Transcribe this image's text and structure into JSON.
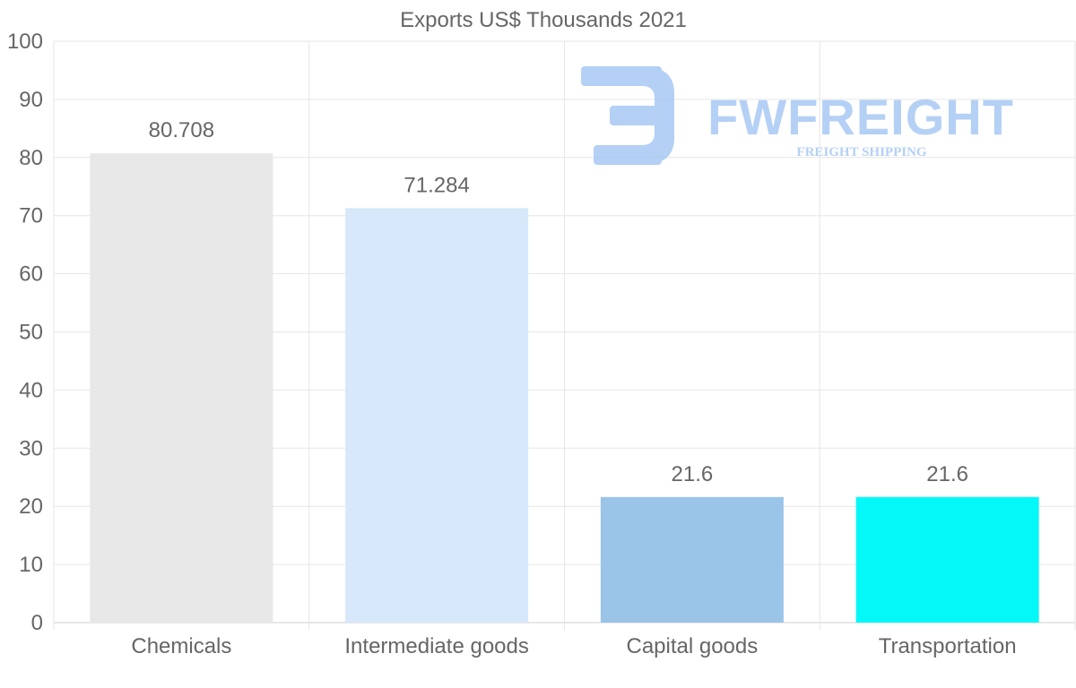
{
  "chart_data": {
    "type": "bar",
    "title": "Exports US$ Thousands 2021",
    "categories": [
      "Chemicals",
      "Intermediate goods",
      "Capital goods",
      "Transportation"
    ],
    "values": [
      80.708,
      71.284,
      21.6,
      21.6
    ],
    "value_labels": [
      "80.708",
      "71.284",
      "21.6",
      "21.6"
    ],
    "bar_colors": [
      "#e8e8e8",
      "#d6e8fa",
      "#9ac4e8",
      "#05f8f8"
    ],
    "ylim": [
      0,
      100
    ],
    "yticks": [
      0,
      10,
      20,
      30,
      40,
      50,
      60,
      70,
      80,
      90,
      100
    ],
    "xlabel": "",
    "ylabel": "",
    "grid": true,
    "legend": "none"
  },
  "watermark": {
    "brand": "FWFREIGHT",
    "tagline": "FREIGHT SHIPPING",
    "color": "#a8c8f4"
  }
}
